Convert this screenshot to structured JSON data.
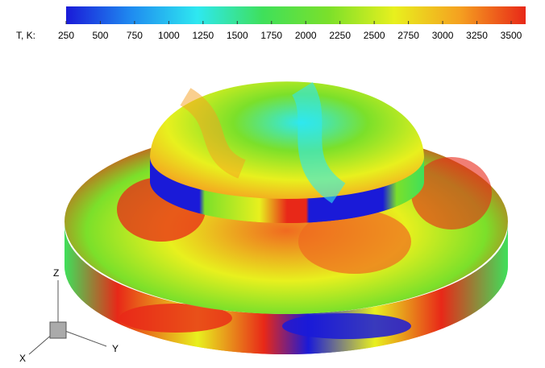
{
  "colorbar": {
    "label": "T, K:",
    "lim": [
      250,
      3500
    ],
    "ticks": [
      250,
      500,
      750,
      1000,
      1250,
      1500,
      1750,
      2000,
      2250,
      2500,
      2750,
      3000,
      3250,
      3500
    ],
    "colors": [
      "#1a1ad8",
      "#1f8cf0",
      "#2ee8f0",
      "#3fe05a",
      "#7be02a",
      "#e8f01e",
      "#f5a020",
      "#e82818"
    ]
  },
  "axes": {
    "z": "Z",
    "y": "Y",
    "x": "X"
  }
}
